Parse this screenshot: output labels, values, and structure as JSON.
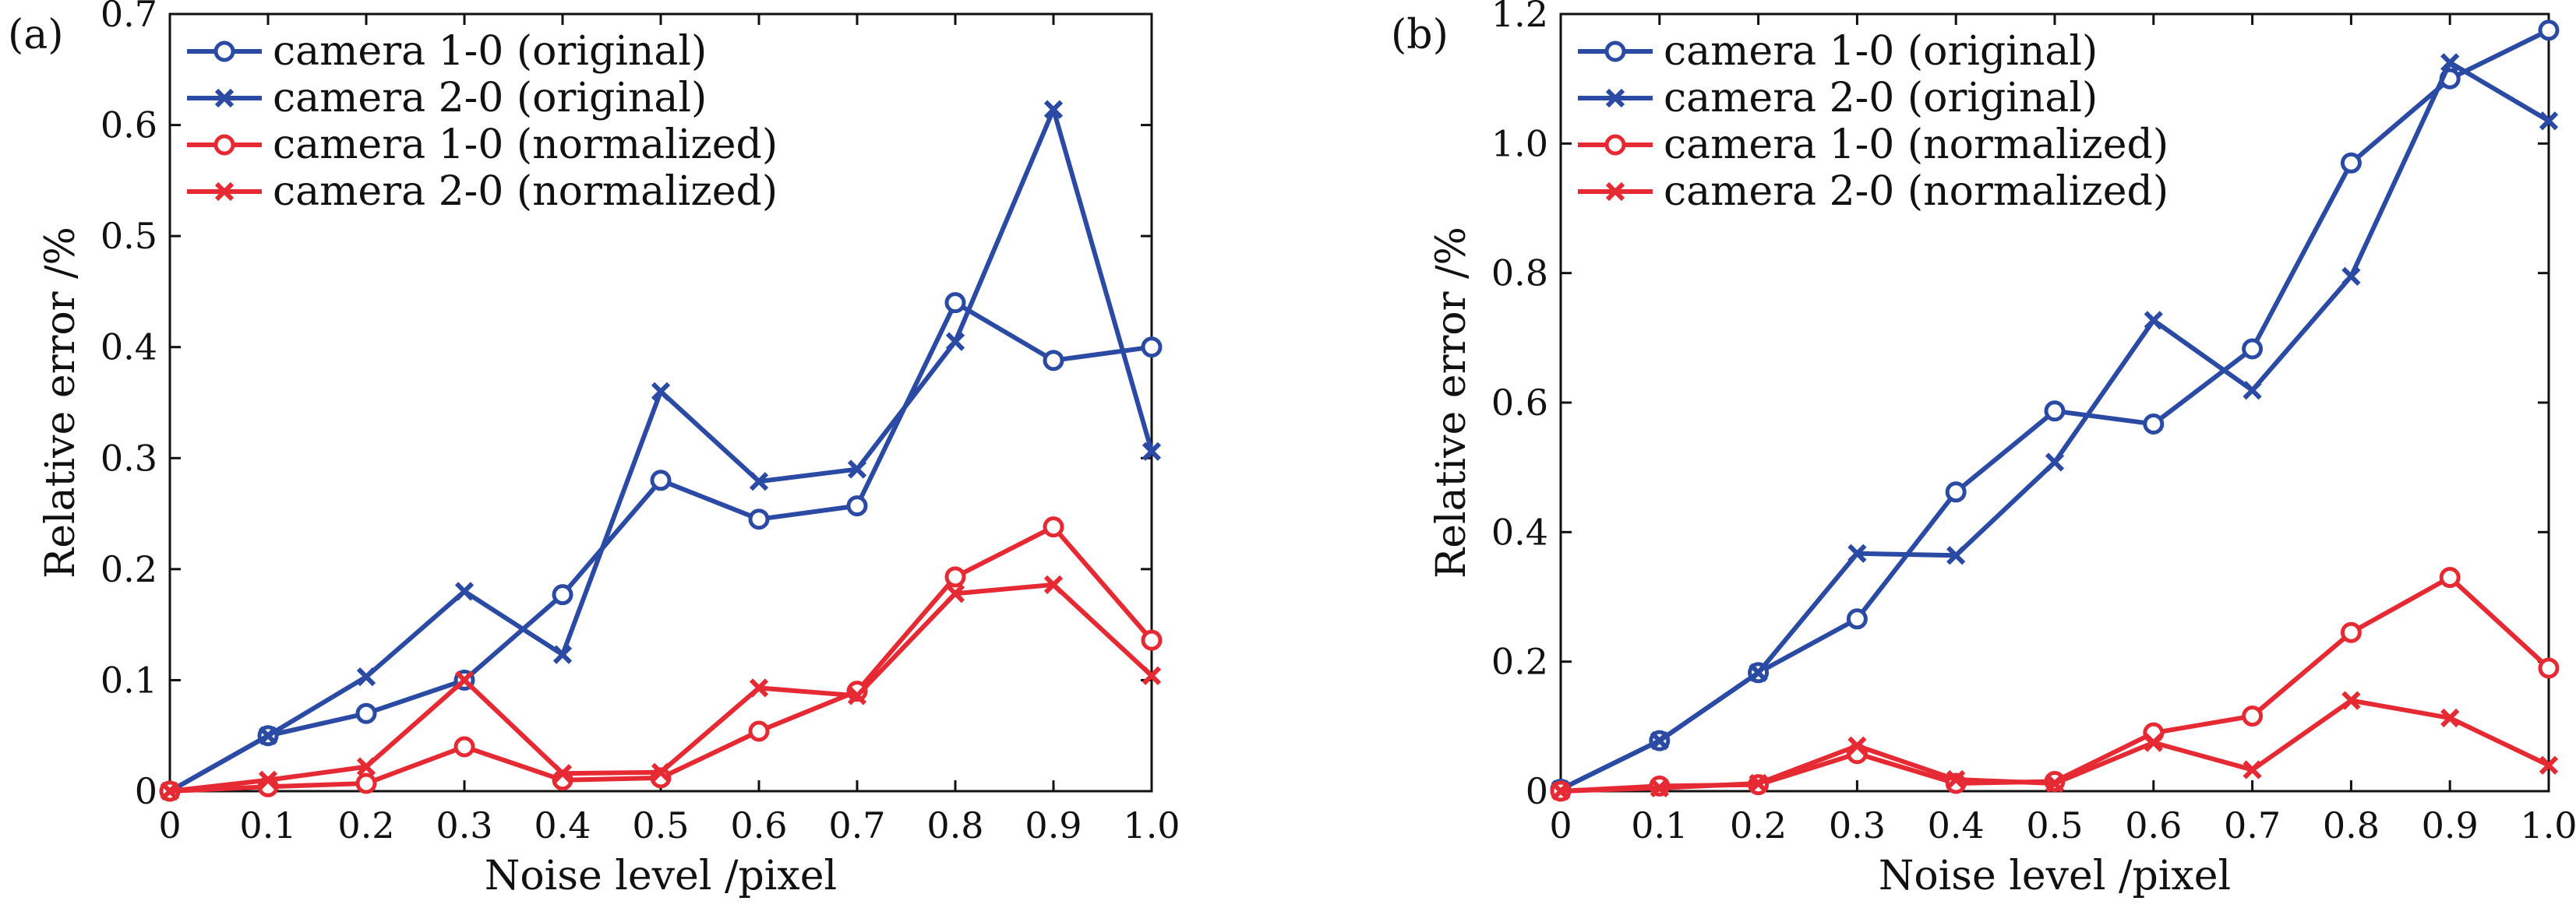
{
  "colors": {
    "original": "#2a4aa3",
    "normalized": "#e52a34"
  },
  "chart_data": [
    {
      "type": "line",
      "panel_label": "(a)",
      "xlabel": "Noise level /pixel",
      "ylabel": "Relative error /%",
      "xlim": [
        0,
        1.0
      ],
      "ylim": [
        0,
        0.7
      ],
      "x": [
        0,
        0.1,
        0.2,
        0.3,
        0.4,
        0.5,
        0.6,
        0.7,
        0.8,
        0.9,
        1.0
      ],
      "xticks": [
        "0",
        "0.1",
        "0.2",
        "0.3",
        "0.4",
        "0.5",
        "0.6",
        "0.7",
        "0.8",
        "0.9",
        "1.0"
      ],
      "yticks": [
        "0",
        "0.1",
        "0.2",
        "0.3",
        "0.4",
        "0.5",
        "0.6",
        "0.7"
      ],
      "legend_position": "top-left",
      "series": [
        {
          "name": "camera 1-0 (original)",
          "color": "original",
          "marker": "circle",
          "values": [
            0,
            0.05,
            0.07,
            0.1,
            0.177,
            0.28,
            0.245,
            0.257,
            0.44,
            0.388,
            0.4
          ]
        },
        {
          "name": "camera 2-0 (original)",
          "color": "original",
          "marker": "x",
          "values": [
            0,
            0.05,
            0.103,
            0.18,
            0.123,
            0.36,
            0.279,
            0.29,
            0.405,
            0.614,
            0.306
          ]
        },
        {
          "name": "camera 1-0 (normalized)",
          "color": "normalized",
          "marker": "circle",
          "values": [
            0,
            0.004,
            0.007,
            0.04,
            0.01,
            0.012,
            0.054,
            0.09,
            0.193,
            0.238,
            0.136
          ]
        },
        {
          "name": "camera 2-0 (normalized)",
          "color": "normalized",
          "marker": "x",
          "values": [
            0,
            0.01,
            0.022,
            0.1,
            0.016,
            0.017,
            0.093,
            0.086,
            0.178,
            0.186,
            0.104
          ]
        }
      ]
    },
    {
      "type": "line",
      "panel_label": "(b)",
      "xlabel": "Noise level /pixel",
      "ylabel": "Relative error /%",
      "xlim": [
        0,
        1.0
      ],
      "ylim": [
        0,
        1.2
      ],
      "x": [
        0,
        0.1,
        0.2,
        0.3,
        0.4,
        0.5,
        0.6,
        0.7,
        0.8,
        0.9,
        1.0
      ],
      "xticks": [
        "0",
        "0.1",
        "0.2",
        "0.3",
        "0.4",
        "0.5",
        "0.6",
        "0.7",
        "0.8",
        "0.9",
        "1.0"
      ],
      "yticks": [
        "0",
        "0.2",
        "0.4",
        "0.6",
        "0.8",
        "1.0",
        "1.2"
      ],
      "legend_position": "top-left",
      "series": [
        {
          "name": "camera 1-0 (original)",
          "color": "original",
          "marker": "circle",
          "values": [
            0.003,
            0.078,
            0.183,
            0.266,
            0.462,
            0.587,
            0.567,
            0.683,
            0.97,
            1.1,
            1.175
          ]
        },
        {
          "name": "camera 2-0 (original)",
          "color": "original",
          "marker": "x",
          "values": [
            0.003,
            0.078,
            0.183,
            0.367,
            0.364,
            0.508,
            0.727,
            0.619,
            0.795,
            1.125,
            1.035
          ]
        },
        {
          "name": "camera 1-0 (normalized)",
          "color": "normalized",
          "marker": "circle",
          "values": [
            0,
            0.008,
            0.01,
            0.058,
            0.012,
            0.015,
            0.09,
            0.116,
            0.245,
            0.33,
            0.19
          ]
        },
        {
          "name": "camera 2-0 (normalized)",
          "color": "normalized",
          "marker": "x",
          "values": [
            0,
            0.005,
            0.012,
            0.07,
            0.018,
            0.012,
            0.075,
            0.033,
            0.14,
            0.113,
            0.04
          ]
        }
      ]
    }
  ]
}
